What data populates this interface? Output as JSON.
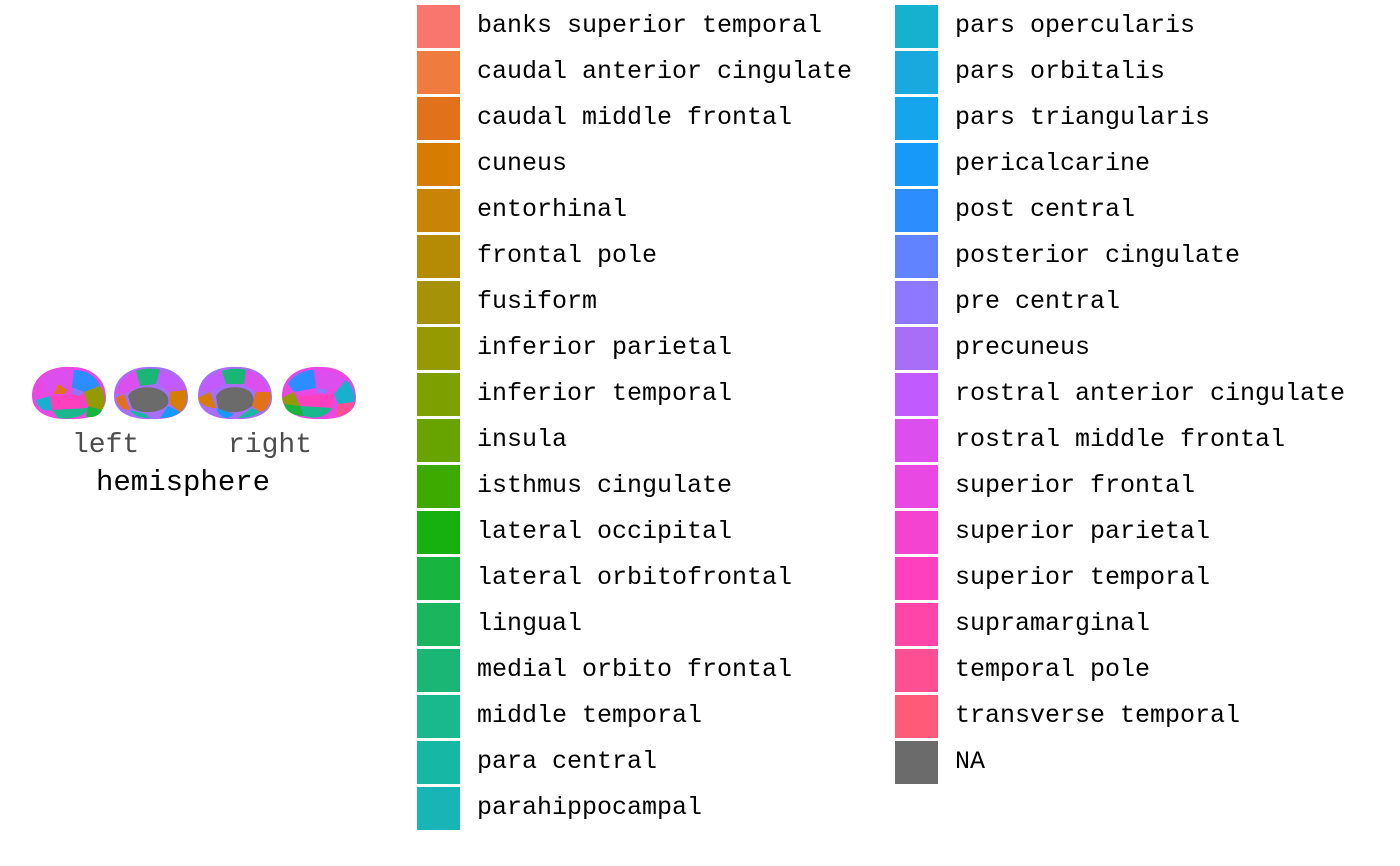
{
  "figure": {
    "axis_title": "hemisphere",
    "hemisphere_labels": [
      "left",
      "right"
    ]
  },
  "legend": {
    "items": [
      {
        "label": "banks superior temporal",
        "color": "#F8766D"
      },
      {
        "label": "caudal anterior cingulate",
        "color": "#EF7B3F"
      },
      {
        "label": "caudal middle frontal",
        "color": "#E2711C"
      },
      {
        "label": "cuneus",
        "color": "#D67C00"
      },
      {
        "label": "entorhinal",
        "color": "#C98306"
      },
      {
        "label": "frontal pole",
        "color": "#B58A04"
      },
      {
        "label": "fusiform",
        "color": "#A59208"
      },
      {
        "label": "inferior parietal",
        "color": "#949A00"
      },
      {
        "label": "inferior temporal",
        "color": "#7E9F00"
      },
      {
        "label": "insula",
        "color": "#68A400"
      },
      {
        "label": "isthmus cingulate",
        "color": "#3DAA00"
      },
      {
        "label": "lateral occipital",
        "color": "#16B10E"
      },
      {
        "label": "lateral orbitofrontal",
        "color": "#17B440"
      },
      {
        "label": "lingual",
        "color": "#1BB55E"
      },
      {
        "label": "medial orbito frontal",
        "color": "#19B675"
      },
      {
        "label": "middle temporal",
        "color": "#1AB88D"
      },
      {
        "label": "para central",
        "color": "#17B8A3"
      },
      {
        "label": "parahippocampal",
        "color": "#18B4B6"
      },
      {
        "label": "pars opercularis",
        "color": "#16B1CF"
      },
      {
        "label": "pars orbitalis",
        "color": "#1AA9DF"
      },
      {
        "label": "pars triangularis",
        "color": "#14A5EC"
      },
      {
        "label": "pericalcarine",
        "color": "#1799FA"
      },
      {
        "label": "post central",
        "color": "#2B8DFF"
      },
      {
        "label": "posterior cingulate",
        "color": "#6283FF"
      },
      {
        "label": "pre central",
        "color": "#8D78FF"
      },
      {
        "label": "precuneus",
        "color": "#A86EF8"
      },
      {
        "label": "rostral anterior cingulate",
        "color": "#C25BFF"
      },
      {
        "label": "rostral middle frontal",
        "color": "#DD4EEE"
      },
      {
        "label": "superior frontal",
        "color": "#E948E3"
      },
      {
        "label": "superior parietal",
        "color": "#F443D1"
      },
      {
        "label": "superior temporal",
        "color": "#FF40BE"
      },
      {
        "label": "supramarginal",
        "color": "#FF45A8"
      },
      {
        "label": "temporal pole",
        "color": "#FF4F93"
      },
      {
        "label": "transverse temporal",
        "color": "#FF5A77"
      },
      {
        "label": "NA",
        "color": "#6B6B6B"
      }
    ]
  }
}
